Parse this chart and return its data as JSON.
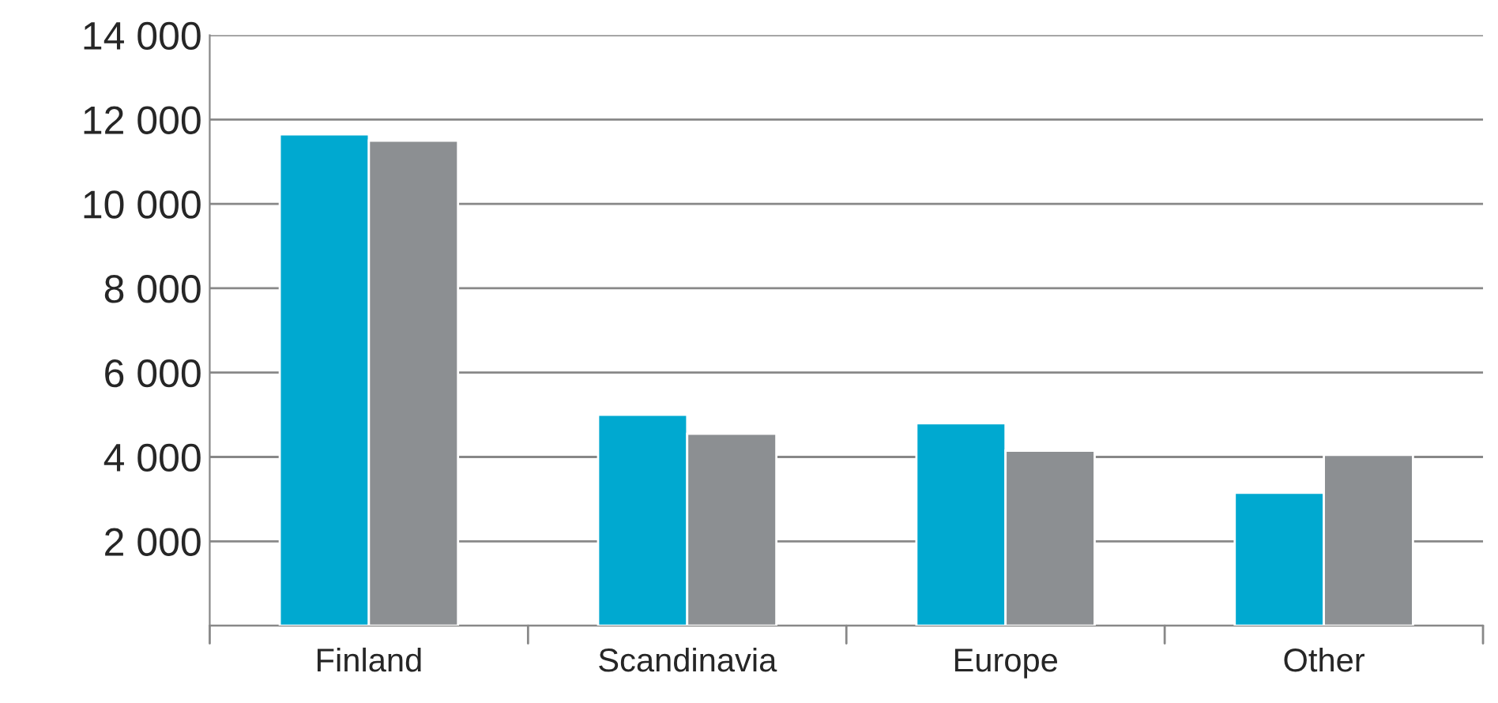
{
  "chart_data": {
    "type": "bar",
    "categories": [
      "Finland",
      "Scandinavia",
      "Europe",
      "Other"
    ],
    "series": [
      {
        "color": "#00a9d0",
        "values": [
          11650,
          5000,
          4800,
          3150
        ]
      },
      {
        "color": "#8c8f92",
        "values": [
          11500,
          4550,
          4150,
          4050
        ]
      }
    ],
    "ylim": [
      0,
      14000
    ],
    "yticks": [
      {
        "value": 0,
        "label": null
      },
      {
        "value": 2000,
        "label": "2 000"
      },
      {
        "value": 4000,
        "label": "4 000"
      },
      {
        "value": 6000,
        "label": "6 000"
      },
      {
        "value": 8000,
        "label": "8 000"
      },
      {
        "value": 10000,
        "label": "10 000"
      },
      {
        "value": 12000,
        "label": "12 000"
      },
      {
        "value": 14000,
        "label": "14 000"
      }
    ],
    "grid": "y"
  }
}
